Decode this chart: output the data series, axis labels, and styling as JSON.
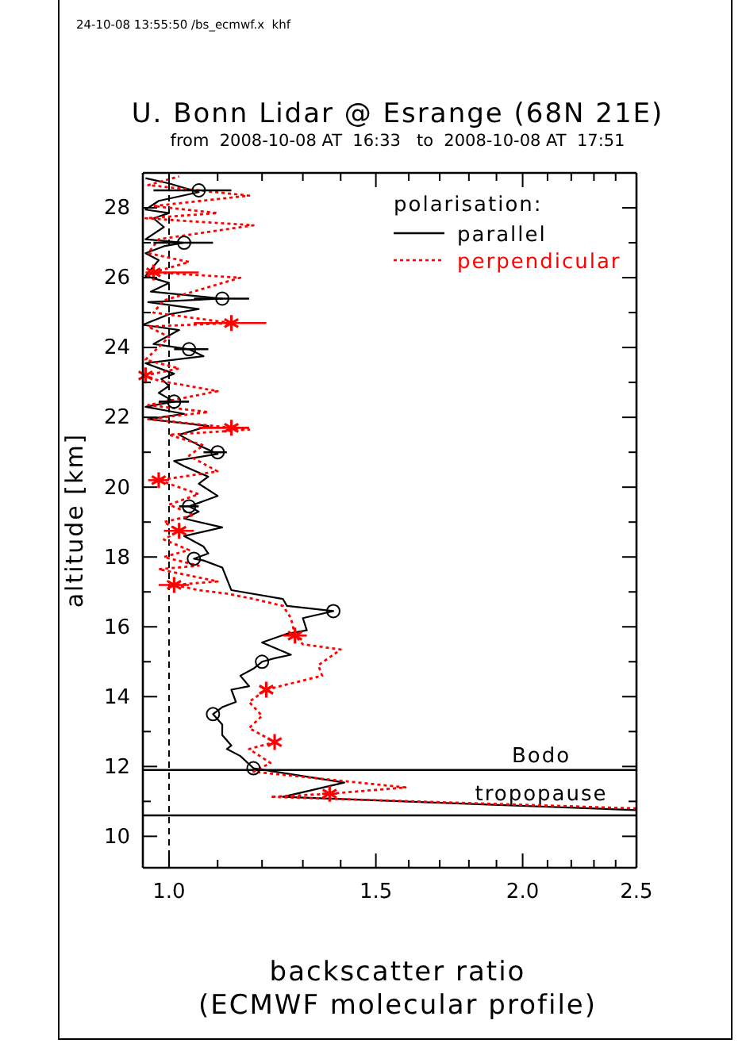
{
  "chart_data": {
    "type": "line",
    "title": "U. Bonn Lidar @ Esrange (68N 21E)",
    "subtitle": "from  2008-10-08 AT  16:33   to  2008-10-08 AT  17:51",
    "annotations": [
      "24-10-08 13:55:50 /bs_ecmwf.x  khf"
    ],
    "xlabel": "backscatter ratio\n(ECMWF molecular profile)",
    "ylabel": "altitude [km]",
    "legend_title": "polarisation:",
    "legend": "top right",
    "log": "x",
    "xlim": [
      0.95,
      2.5
    ],
    "ylim": [
      9.1,
      29
    ],
    "xticks": [
      {
        "value": 1,
        "label": "1.0"
      },
      {
        "value": 1.1,
        "label": null
      },
      {
        "value": 1.2,
        "label": null
      },
      {
        "value": 1.3,
        "label": null
      },
      {
        "value": 1.4,
        "label": null
      },
      {
        "value": 1.5,
        "label": "1.5"
      },
      {
        "value": 1.6,
        "label": null
      },
      {
        "value": 1.7,
        "label": null
      },
      {
        "value": 1.8,
        "label": null
      },
      {
        "value": 1.9,
        "label": null
      },
      {
        "value": 2,
        "label": "2.0"
      },
      {
        "value": 2.1,
        "label": null
      },
      {
        "value": 2.2,
        "label": null
      },
      {
        "value": 2.3,
        "label": null
      },
      {
        "value": 2.4,
        "label": null
      },
      {
        "value": 2.5,
        "label": "2.5"
      }
    ],
    "yticks": [
      10,
      {
        "value": 11,
        "label": null
      },
      12,
      {
        "value": 13,
        "label": null
      },
      14,
      {
        "value": 15,
        "label": null
      },
      16,
      {
        "value": 17,
        "label": null
      },
      18,
      {
        "value": 19,
        "label": null
      },
      20,
      {
        "value": 21,
        "label": null
      },
      22,
      {
        "value": 23,
        "label": null
      },
      24,
      {
        "value": 25,
        "label": null
      },
      26,
      {
        "value": 27,
        "label": null
      },
      28
    ],
    "ref_lines": [
      {
        "axis": "x",
        "value": 1,
        "label": null,
        "line_style": "dashed"
      },
      {
        "axis": "y",
        "value": 11.9,
        "label": "Bodo",
        "line_style": "solid"
      },
      {
        "axis": "y",
        "value": 10.6,
        "label": "tropopause",
        "line_style": "solid"
      }
    ],
    "series": [
      {
        "name": "parallel",
        "color": "#000000",
        "line_style": "solid",
        "x": [
          2.5,
          1.25,
          1.41,
          1.18,
          1.15,
          1.12,
          1.13,
          1.11,
          1.11,
          1.09,
          1.11,
          1.14,
          1.13,
          1.17,
          1.15,
          1.18,
          1.2,
          1.23,
          1.27,
          1.2,
          1.26,
          1.31,
          1.3,
          1.38,
          1.26,
          1.25,
          1.13,
          1.11,
          1.07,
          1.05,
          1.08,
          1.07,
          1.03,
          1.11,
          1.03,
          1.06,
          1.04,
          1.07,
          1.1,
          1.06,
          1.08,
          1.03,
          1.01,
          1.1,
          1.06,
          1.02,
          1.08,
          0.96,
          1.03,
          0.955,
          1.01,
          0.98,
          1.0,
          0.985,
          1.01,
          0.955,
          1.07,
          1.04,
          0.97,
          1.02,
          0.95,
          1.0,
          1.06,
          0.96,
          1.11,
          0.965,
          1.0,
          0.955,
          0.98,
          0.955,
          0.99,
          1.03,
          0.955,
          0.99,
          0.97,
          1.0,
          0.955,
          0.98,
          1.06,
          1.0,
          0.955
        ],
        "values": [
          10.75,
          11.13,
          11.54,
          11.95,
          12.3,
          12.5,
          12.6,
          12.9,
          13.2,
          13.5,
          13.7,
          13.85,
          14.2,
          14.3,
          14.6,
          14.8,
          15.0,
          15.1,
          15.2,
          15.55,
          15.8,
          15.9,
          16.25,
          16.45,
          16.6,
          16.8,
          17.05,
          17.7,
          17.9,
          17.95,
          18.1,
          18.3,
          18.6,
          18.85,
          19.1,
          19.3,
          19.45,
          19.6,
          19.75,
          20.1,
          20.3,
          20.6,
          20.75,
          20.95,
          21.2,
          21.5,
          21.75,
          21.95,
          22.1,
          22.3,
          22.45,
          22.7,
          22.9,
          23.1,
          23.25,
          23.55,
          23.75,
          23.95,
          24.1,
          24.5,
          24.65,
          24.95,
          25.1,
          25.3,
          25.4,
          25.6,
          25.85,
          26.05,
          26.5,
          26.7,
          26.9,
          27.0,
          27.1,
          27.45,
          27.7,
          27.85,
          27.95,
          28.2,
          28.45,
          28.7,
          28.85
        ]
      },
      {
        "name": "perpendicular",
        "color": "#ff0000",
        "line_style": "dotted",
        "x": [
          2.5,
          1.22,
          1.37,
          1.59,
          1.18,
          1.22,
          1.17,
          1.23,
          1.17,
          1.2,
          1.17,
          1.21,
          1.35,
          1.34,
          1.4,
          1.3,
          1.28,
          1.27,
          1.25,
          1.18,
          1.12,
          1.06,
          1.01,
          1.1,
          0.98,
          1.06,
          0.99,
          1.04,
          0.99,
          1.02,
          0.99,
          1.05,
          1.0,
          1.06,
          0.98,
          1.1,
          1.04,
          1.07,
          1.0,
          1.17,
          1.13,
          0.96,
          1.08,
          0.96,
          1.1,
          0.98,
          0.955,
          1.02,
          0.955,
          1.0,
          0.96,
          1.13,
          0.97,
          0.99,
          1.15,
          0.97,
          1.04,
          0.96,
          0.98,
          1.18,
          0.955,
          1.1,
          0.97,
          1.17,
          0.96,
          1.02
        ],
        "values": [
          10.8,
          11.13,
          11.22,
          11.4,
          11.85,
          12.1,
          12.5,
          12.7,
          13.1,
          13.45,
          13.85,
          14.2,
          14.6,
          14.9,
          15.35,
          15.5,
          15.75,
          16.25,
          16.6,
          16.8,
          16.95,
          17.05,
          17.2,
          17.3,
          17.65,
          17.75,
          18.0,
          18.2,
          18.5,
          18.75,
          19.0,
          19.2,
          19.5,
          19.8,
          20.2,
          20.45,
          20.9,
          21.2,
          21.5,
          21.65,
          21.7,
          21.95,
          22.15,
          22.35,
          22.75,
          23.05,
          23.2,
          23.4,
          23.65,
          24.3,
          24.6,
          24.7,
          25.0,
          25.35,
          26.0,
          26.15,
          26.45,
          26.7,
          27.1,
          27.5,
          27.7,
          27.85,
          28.05,
          28.35,
          28.65,
          28.9
        ]
      },
      {
        "type": "scatter",
        "color": "#000000",
        "marker": "circle",
        "x": [
          1.18,
          1.09,
          1.2,
          1.38,
          1.05,
          1.04,
          1.1,
          1.01,
          1.04,
          1.11,
          1.03,
          1.06
        ],
        "values": [
          11.95,
          13.5,
          15.0,
          16.45,
          17.95,
          19.45,
          21.0,
          22.45,
          23.95,
          25.4,
          27.0,
          28.5
        ],
        "xerrors": [
          null,
          null,
          null,
          null,
          null,
          0.02,
          [
            1.07,
            1.12
          ],
          [
            0.98,
            1.04
          ],
          [
            1.01,
            1.08
          ],
          [
            1.05,
            1.17
          ],
          [
            0.97,
            1.09
          ],
          [
            0.97,
            1.13
          ]
        ]
      },
      {
        "type": "scatter",
        "color": "#ff0000",
        "marker": "cross",
        "x": [
          1.37,
          1.23,
          1.21,
          1.28,
          1.01,
          1.02,
          0.98,
          1.13,
          0.955,
          1.13,
          0.97
        ],
        "values": [
          11.22,
          12.7,
          14.2,
          15.75,
          17.2,
          18.75,
          20.2,
          21.7,
          23.2,
          24.7,
          26.15
        ],
        "xerrors": [
          0.02,
          null,
          null,
          0.03,
          0.03,
          0.03,
          0.02,
          [
            1.06,
            1.17
          ],
          null,
          [
            1.05,
            1.21
          ],
          [
            0.955,
            1.06
          ]
        ]
      }
    ]
  }
}
